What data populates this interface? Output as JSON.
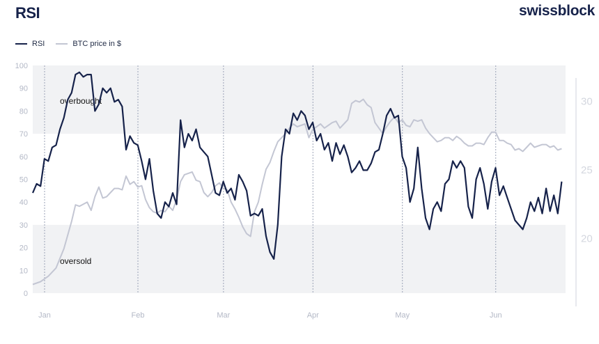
{
  "header": {
    "title": "RSI",
    "brand": "swissblock"
  },
  "colors": {
    "rsi": "#16224a",
    "btc": "#c3c6d3",
    "band": "#f1f2f4",
    "tick": "#b3b8c6",
    "grid": "#9aa2b6"
  },
  "legend": [
    {
      "label": "RSI",
      "color": "#16224a"
    },
    {
      "label": "BTC price in $",
      "color": "#c3c6d3"
    }
  ],
  "chart_data": {
    "type": "line",
    "title": "RSI",
    "xlabel": "",
    "ylabel": "",
    "x_range": [
      0,
      137
    ],
    "x_ticks": [
      {
        "label": "Jan",
        "day": 0
      },
      {
        "label": "Feb",
        "day": 24
      },
      {
        "label": "Mar",
        "day": 46
      },
      {
        "label": "Apr",
        "day": 69
      },
      {
        "label": "May",
        "day": 92
      },
      {
        "label": "Jun",
        "day": 116
      }
    ],
    "y_left": {
      "range": [
        0,
        100
      ],
      "ticks": [
        0,
        10,
        20,
        30,
        40,
        50,
        60,
        70,
        80,
        90,
        100
      ]
    },
    "y_right": {
      "range": [
        15,
        31.5
      ],
      "ticks": [
        20,
        25,
        30
      ],
      "tick_labels": [
        "20",
        "25",
        "30"
      ]
    },
    "bands": [
      {
        "label": "overbought",
        "from": 70,
        "to": 100
      },
      {
        "label": "oversold",
        "from": 0,
        "to": 30
      }
    ],
    "grid": "vertical dotted lines at month starts",
    "series": [
      {
        "name": "RSI",
        "axis": "left",
        "points": [
          [
            0,
            44
          ],
          [
            1,
            48
          ],
          [
            2,
            47
          ],
          [
            3,
            59
          ],
          [
            4,
            58
          ],
          [
            5,
            64
          ],
          [
            6,
            65
          ],
          [
            7,
            72
          ],
          [
            8,
            77
          ],
          [
            9,
            85
          ],
          [
            10,
            88
          ],
          [
            11,
            96
          ],
          [
            12,
            97
          ],
          [
            13,
            95
          ],
          [
            14,
            96
          ],
          [
            15,
            96
          ],
          [
            16,
            80
          ],
          [
            17,
            83
          ],
          [
            18,
            90
          ],
          [
            19,
            88
          ],
          [
            20,
            90
          ],
          [
            21,
            84
          ],
          [
            22,
            85
          ],
          [
            23,
            82
          ],
          [
            24,
            63
          ],
          [
            25,
            69
          ],
          [
            26,
            66
          ],
          [
            27,
            65
          ],
          [
            28,
            58
          ],
          [
            29,
            50
          ],
          [
            30,
            59
          ],
          [
            31,
            45
          ],
          [
            32,
            35
          ],
          [
            33,
            33
          ],
          [
            34,
            40
          ],
          [
            35,
            38
          ],
          [
            36,
            44
          ],
          [
            37,
            39
          ],
          [
            38,
            76
          ],
          [
            39,
            64
          ],
          [
            40,
            70
          ],
          [
            41,
            67
          ],
          [
            42,
            72
          ],
          [
            43,
            64
          ],
          [
            44,
            62
          ],
          [
            45,
            60
          ],
          [
            46,
            52
          ],
          [
            47,
            44
          ],
          [
            48,
            43
          ],
          [
            49,
            49
          ],
          [
            50,
            44
          ],
          [
            51,
            46
          ],
          [
            52,
            41
          ],
          [
            53,
            52
          ],
          [
            54,
            49
          ],
          [
            55,
            45
          ],
          [
            56,
            34
          ],
          [
            57,
            35
          ],
          [
            58,
            34
          ],
          [
            59,
            37
          ],
          [
            60,
            25
          ],
          [
            61,
            18
          ],
          [
            62,
            15
          ],
          [
            63,
            30
          ],
          [
            64,
            60
          ],
          [
            65,
            72
          ],
          [
            66,
            70
          ],
          [
            67,
            79
          ],
          [
            68,
            76
          ],
          [
            69,
            80
          ],
          [
            70,
            78
          ],
          [
            71,
            72
          ],
          [
            72,
            75
          ],
          [
            73,
            67
          ],
          [
            74,
            70
          ],
          [
            75,
            63
          ],
          [
            76,
            66
          ],
          [
            77,
            58
          ],
          [
            78,
            66
          ],
          [
            79,
            61
          ],
          [
            80,
            65
          ],
          [
            81,
            60
          ],
          [
            82,
            53
          ],
          [
            83,
            55
          ],
          [
            84,
            58
          ],
          [
            85,
            54
          ],
          [
            86,
            54
          ],
          [
            87,
            57
          ],
          [
            88,
            62
          ],
          [
            89,
            63
          ],
          [
            90,
            70
          ],
          [
            91,
            78
          ],
          [
            92,
            81
          ],
          [
            93,
            77
          ],
          [
            94,
            78
          ],
          [
            95,
            60
          ],
          [
            96,
            55
          ],
          [
            97,
            40
          ],
          [
            98,
            46
          ],
          [
            99,
            64
          ],
          [
            100,
            46
          ],
          [
            101,
            33
          ],
          [
            102,
            28
          ],
          [
            103,
            37
          ],
          [
            104,
            40
          ],
          [
            105,
            36
          ],
          [
            106,
            48
          ],
          [
            107,
            50
          ],
          [
            108,
            58
          ],
          [
            109,
            55
          ],
          [
            110,
            58
          ],
          [
            111,
            55
          ],
          [
            112,
            38
          ],
          [
            113,
            33
          ],
          [
            114,
            50
          ],
          [
            115,
            55
          ],
          [
            116,
            48
          ],
          [
            117,
            37
          ],
          [
            118,
            49
          ],
          [
            119,
            55
          ],
          [
            120,
            43
          ],
          [
            121,
            47
          ],
          [
            122,
            42
          ],
          [
            123,
            37
          ],
          [
            124,
            32
          ],
          [
            125,
            30
          ],
          [
            126,
            28
          ],
          [
            127,
            33
          ],
          [
            128,
            40
          ],
          [
            129,
            36
          ],
          [
            130,
            42
          ],
          [
            131,
            35
          ],
          [
            132,
            46
          ],
          [
            133,
            36
          ],
          [
            134,
            43
          ],
          [
            135,
            35
          ],
          [
            136,
            49
          ]
        ]
      },
      {
        "name": "BTC price in $",
        "axis": "right",
        "points": [
          [
            0,
            16.6
          ],
          [
            2,
            16.8
          ],
          [
            4,
            17.2
          ],
          [
            6,
            17.8
          ],
          [
            8,
            19.2
          ],
          [
            10,
            21.2
          ],
          [
            11,
            22.4
          ],
          [
            12,
            22.3
          ],
          [
            14,
            22.6
          ],
          [
            15,
            22.0
          ],
          [
            16,
            23.0
          ],
          [
            17,
            23.7
          ],
          [
            18,
            22.9
          ],
          [
            19,
            23.0
          ],
          [
            20,
            23.3
          ],
          [
            21,
            23.6
          ],
          [
            22,
            23.6
          ],
          [
            23,
            23.5
          ],
          [
            24,
            24.5
          ],
          [
            25,
            23.9
          ],
          [
            26,
            24.1
          ],
          [
            27,
            23.7
          ],
          [
            28,
            23.8
          ],
          [
            29,
            22.8
          ],
          [
            30,
            22.2
          ],
          [
            31,
            21.9
          ],
          [
            32,
            21.8
          ],
          [
            33,
            22.0
          ],
          [
            34,
            21.9
          ],
          [
            35,
            22.3
          ],
          [
            36,
            22.0
          ],
          [
            37,
            22.8
          ],
          [
            38,
            24.1
          ],
          [
            39,
            24.6
          ],
          [
            40,
            24.7
          ],
          [
            41,
            24.8
          ],
          [
            42,
            24.2
          ],
          [
            43,
            24.1
          ],
          [
            44,
            23.3
          ],
          [
            45,
            23.0
          ],
          [
            46,
            23.3
          ],
          [
            47,
            23.8
          ],
          [
            48,
            24.0
          ],
          [
            49,
            23.6
          ],
          [
            50,
            23.5
          ],
          [
            51,
            22.6
          ],
          [
            52,
            22.1
          ],
          [
            53,
            21.5
          ],
          [
            54,
            20.8
          ],
          [
            55,
            20.3
          ],
          [
            56,
            20.1
          ],
          [
            57,
            21.9
          ],
          [
            58,
            22.6
          ],
          [
            59,
            23.9
          ],
          [
            60,
            25.0
          ],
          [
            61,
            25.5
          ],
          [
            62,
            26.3
          ],
          [
            63,
            27.0
          ],
          [
            64,
            27.3
          ],
          [
            65,
            27.6
          ],
          [
            66,
            28.0
          ],
          [
            67,
            28.3
          ],
          [
            68,
            28.1
          ],
          [
            69,
            28.2
          ],
          [
            70,
            28.3
          ],
          [
            71,
            27.3
          ],
          [
            72,
            27.9
          ],
          [
            73,
            28.1
          ],
          [
            74,
            28.3
          ],
          [
            75,
            28.0
          ],
          [
            76,
            28.2
          ],
          [
            77,
            28.4
          ],
          [
            78,
            28.5
          ],
          [
            79,
            28.0
          ],
          [
            80,
            28.3
          ],
          [
            81,
            28.6
          ],
          [
            82,
            29.8
          ],
          [
            83,
            30.0
          ],
          [
            84,
            29.9
          ],
          [
            85,
            30.1
          ],
          [
            86,
            29.7
          ],
          [
            87,
            29.5
          ],
          [
            88,
            28.4
          ],
          [
            89,
            28.0
          ],
          [
            90,
            27.6
          ],
          [
            91,
            28.1
          ],
          [
            92,
            28.5
          ],
          [
            93,
            28.8
          ],
          [
            94,
            28.4
          ],
          [
            95,
            28.6
          ],
          [
            96,
            28.2
          ],
          [
            97,
            28.1
          ],
          [
            98,
            28.6
          ],
          [
            99,
            28.5
          ],
          [
            100,
            28.6
          ],
          [
            101,
            28.0
          ],
          [
            102,
            27.6
          ],
          [
            103,
            27.3
          ],
          [
            104,
            27.0
          ],
          [
            105,
            27.1
          ],
          [
            106,
            27.3
          ],
          [
            107,
            27.3
          ],
          [
            108,
            27.1
          ],
          [
            109,
            27.4
          ],
          [
            110,
            27.2
          ],
          [
            111,
            26.9
          ],
          [
            112,
            26.7
          ],
          [
            113,
            26.7
          ],
          [
            114,
            26.9
          ],
          [
            115,
            26.9
          ],
          [
            116,
            26.8
          ],
          [
            117,
            27.3
          ],
          [
            118,
            27.7
          ],
          [
            119,
            27.7
          ],
          [
            120,
            27.1
          ],
          [
            121,
            27.1
          ],
          [
            122,
            26.9
          ],
          [
            123,
            26.8
          ],
          [
            124,
            26.4
          ],
          [
            125,
            26.5
          ],
          [
            126,
            26.3
          ],
          [
            127,
            26.6
          ],
          [
            128,
            26.9
          ],
          [
            129,
            26.6
          ],
          [
            130,
            26.7
          ],
          [
            131,
            26.8
          ],
          [
            132,
            26.8
          ],
          [
            133,
            26.6
          ],
          [
            134,
            26.7
          ],
          [
            135,
            26.4
          ],
          [
            136,
            26.5
          ]
        ]
      }
    ]
  }
}
